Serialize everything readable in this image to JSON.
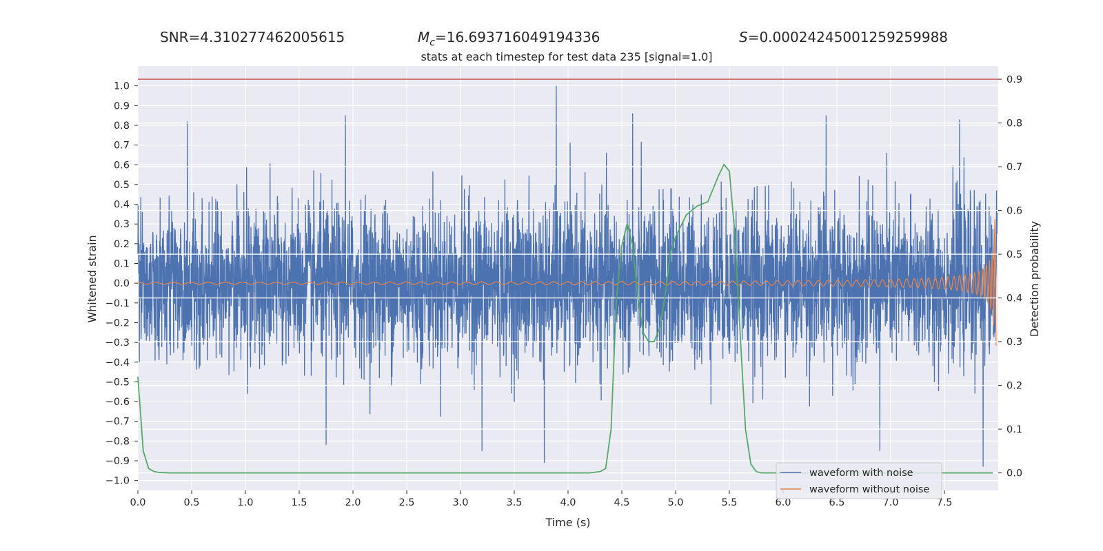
{
  "stats": {
    "snr": "SNR=4.310277462005615",
    "mc_symbol": "M",
    "mc_sub": "c",
    "mc_value": "=16.693716049194336",
    "s_symbol": "S",
    "s_value": "=0.00024245001259259988"
  },
  "chart_data": {
    "type": "line",
    "title": "stats at each timestep for test data 235 [signal=1.0]",
    "xlabel": "Time (s)",
    "ylabel": "Whitened strain",
    "y2label": "Detection probability",
    "xlim": [
      0,
      8
    ],
    "ylim": [
      -1.05,
      1.1
    ],
    "y2lim": [
      -0.04,
      0.93
    ],
    "x_ticks": [
      "0.0",
      "0.5",
      "1.0",
      "1.5",
      "2.0",
      "2.5",
      "3.0",
      "3.5",
      "4.0",
      "4.5",
      "5.0",
      "5.5",
      "6.0",
      "6.5",
      "7.0",
      "7.5"
    ],
    "y_ticks": [
      "-1.0",
      "-0.9",
      "-0.8",
      "-0.7",
      "-0.6",
      "-0.5",
      "-0.4",
      "-0.3",
      "-0.2",
      "-0.1",
      "0.0",
      "0.1",
      "0.2",
      "0.3",
      "0.4",
      "0.5",
      "0.6",
      "0.7",
      "0.8",
      "0.9",
      "1.0"
    ],
    "y2_ticks": [
      "0.0",
      "0.1",
      "0.2",
      "0.3",
      "0.4",
      "0.5",
      "0.6",
      "0.7",
      "0.8",
      "0.9"
    ],
    "threshold": {
      "axis": "y2",
      "value": 0.9,
      "color": "#c44e52"
    },
    "series": [
      {
        "name": "waveform with noise",
        "axis": "y1",
        "color": "#4c72b0",
        "kind": "noise",
        "std": 0.2,
        "x_range": [
          0,
          7.99
        ],
        "peaks": [
          {
            "x": 0.46,
            "y": 0.82
          },
          {
            "x": 1.93,
            "y": 0.85
          },
          {
            "x": 3.89,
            "y": 1.0
          },
          {
            "x": 4.6,
            "y": 0.86
          },
          {
            "x": 6.4,
            "y": 0.85
          },
          {
            "x": 7.64,
            "y": 0.83
          },
          {
            "x": 3.78,
            "y": -0.91
          },
          {
            "x": 7.86,
            "y": -0.93
          },
          {
            "x": 6.9,
            "y": -0.85
          },
          {
            "x": 3.2,
            "y": -0.85
          },
          {
            "x": 1.75,
            "y": -0.82
          }
        ]
      },
      {
        "name": "waveform without noise",
        "axis": "y1",
        "color": "#dd8452",
        "kind": "chirp",
        "amp_start": 0.005,
        "amp_peak": 0.33,
        "t_merger": 7.98,
        "f_start": 6,
        "f_end": 40
      },
      {
        "name": "Detection probability",
        "axis": "y2",
        "color": "#55a868",
        "x": [
          0.0,
          0.05,
          0.1,
          0.15,
          0.2,
          0.3,
          0.5,
          1.0,
          2.0,
          3.0,
          4.0,
          4.2,
          4.3,
          4.35,
          4.4,
          4.45,
          4.5,
          4.55,
          4.6,
          4.65,
          4.7,
          4.75,
          4.8,
          4.85,
          4.9,
          4.95,
          5.0,
          5.1,
          5.2,
          5.3,
          5.4,
          5.45,
          5.5,
          5.55,
          5.6,
          5.65,
          5.7,
          5.75,
          5.8,
          6.0,
          7.0,
          7.95
        ],
        "y": [
          0.22,
          0.05,
          0.01,
          0.003,
          0.001,
          0.0,
          0.0,
          0.0,
          0.0,
          0.0,
          0.0,
          0.0,
          0.003,
          0.01,
          0.1,
          0.4,
          0.52,
          0.57,
          0.52,
          0.4,
          0.32,
          0.3,
          0.3,
          0.33,
          0.4,
          0.5,
          0.54,
          0.59,
          0.61,
          0.62,
          0.68,
          0.705,
          0.69,
          0.55,
          0.32,
          0.1,
          0.02,
          0.003,
          0.0,
          0.0,
          0.0,
          0.0
        ]
      }
    ],
    "legend": {
      "position": "lower-right",
      "entries": [
        "waveform with noise",
        "waveform without noise"
      ]
    }
  }
}
